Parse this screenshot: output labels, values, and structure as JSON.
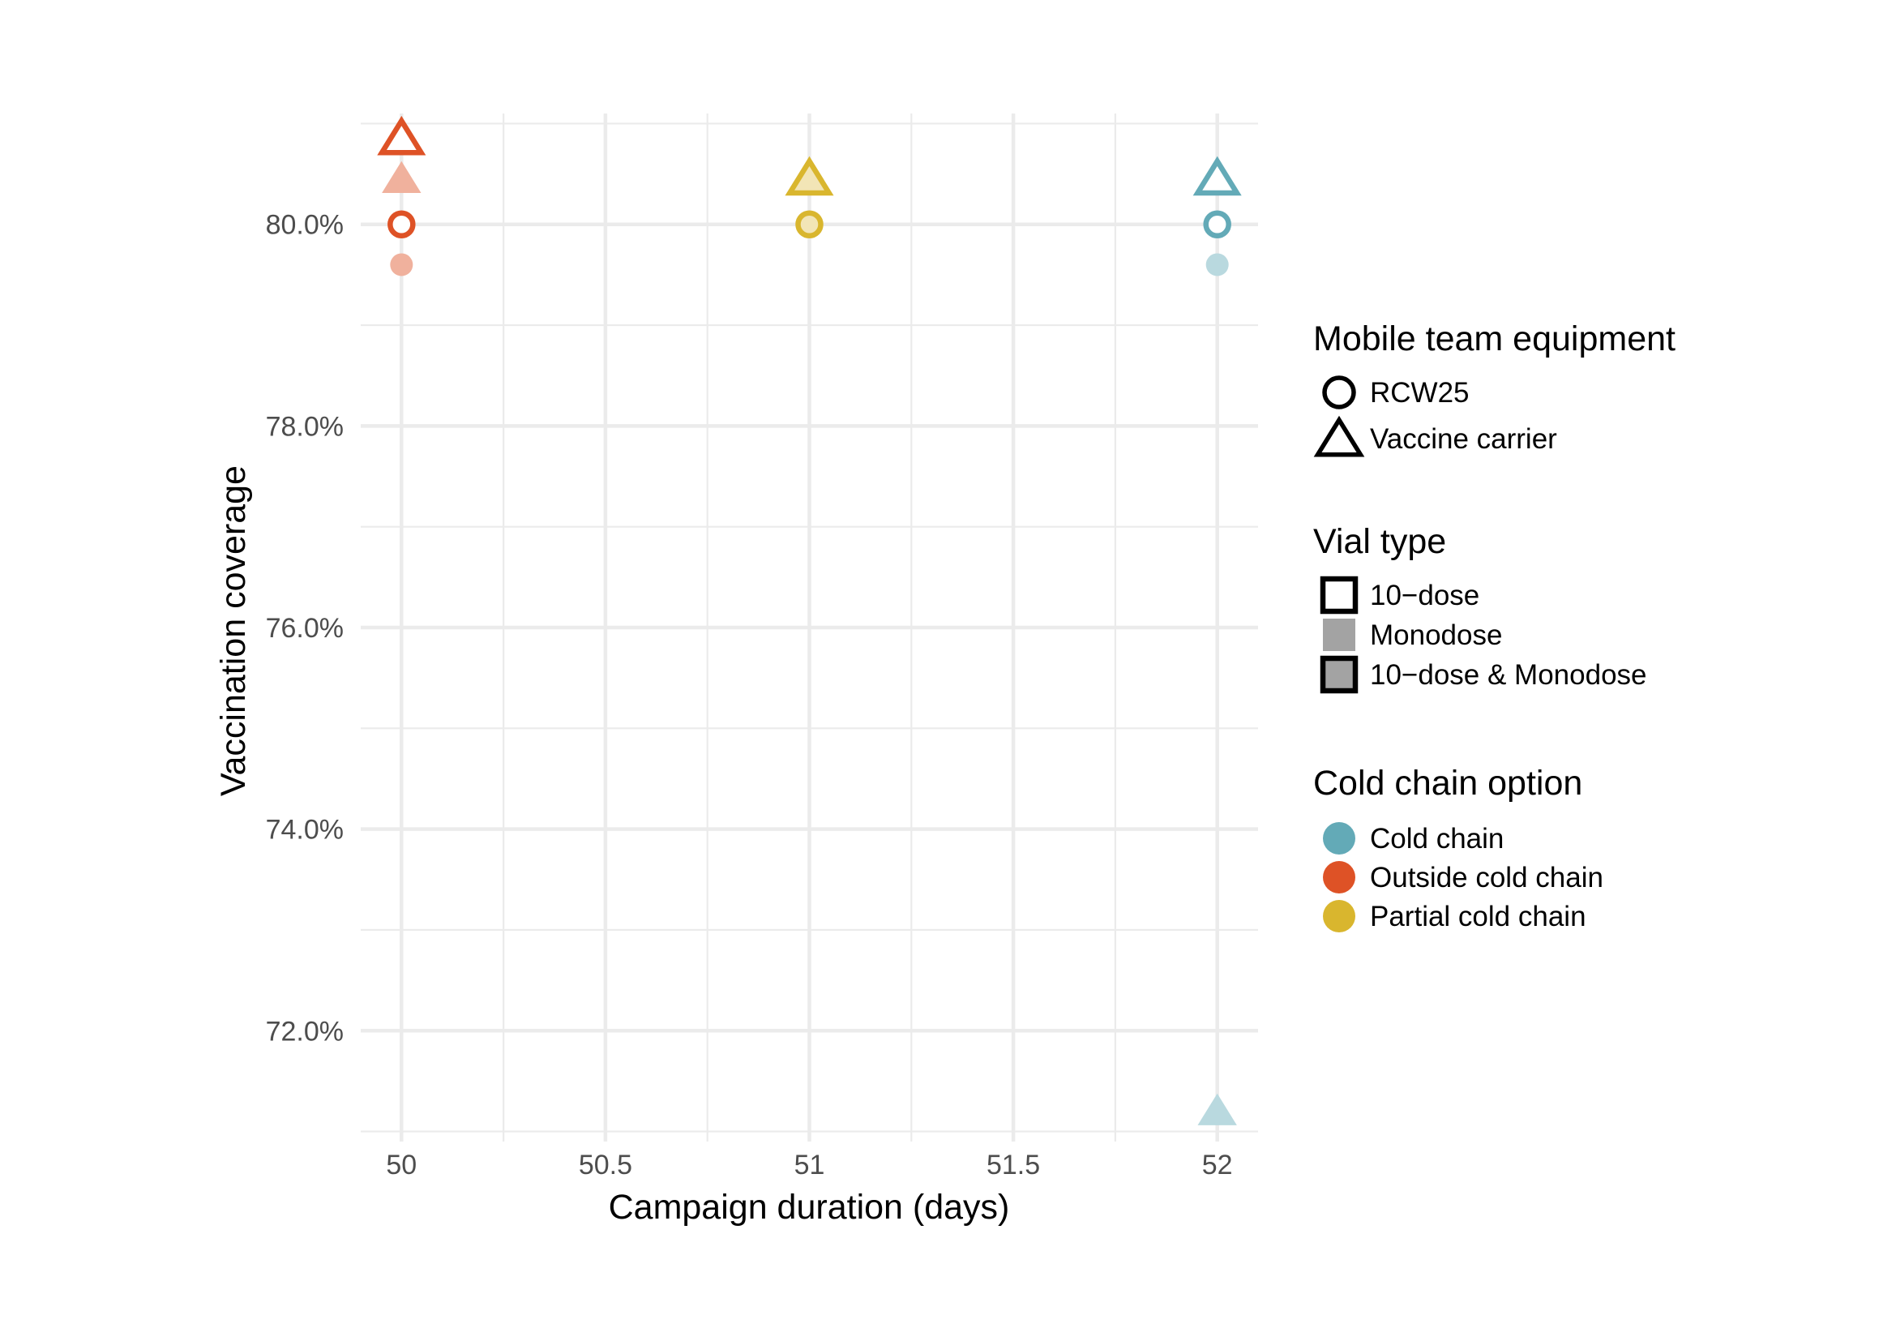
{
  "chart_data": {
    "type": "scatter",
    "xlabel": "Campaign duration (days)",
    "ylabel": "Vaccination coverage",
    "xlim": [
      49.9,
      52.1
    ],
    "ylim": [
      70.9,
      81.1
    ],
    "x_ticks": [
      {
        "value": 50,
        "label": "50"
      },
      {
        "value": 50.5,
        "label": "50.5"
      },
      {
        "value": 51,
        "label": "51"
      },
      {
        "value": 51.5,
        "label": "51.5"
      },
      {
        "value": 52,
        "label": "52"
      }
    ],
    "y_ticks": [
      {
        "value": 72,
        "label": "72.0%"
      },
      {
        "value": 74,
        "label": "74.0%"
      },
      {
        "value": 76,
        "label": "76.0%"
      },
      {
        "value": 78,
        "label": "78.0%"
      },
      {
        "value": 80,
        "label": "80.0%"
      }
    ],
    "grid": true,
    "points": [
      {
        "x": 50,
        "y": 80.85,
        "equipment": "Vaccine carrier",
        "vial": "10-dose",
        "cold_chain": "Outside cold chain"
      },
      {
        "x": 50,
        "y": 80.45,
        "equipment": "Vaccine carrier",
        "vial": "Monodose",
        "cold_chain": "Outside cold chain"
      },
      {
        "x": 50,
        "y": 80.0,
        "equipment": "RCW25",
        "vial": "10-dose",
        "cold_chain": "Outside cold chain"
      },
      {
        "x": 50,
        "y": 79.6,
        "equipment": "RCW25",
        "vial": "Monodose",
        "cold_chain": "Outside cold chain"
      },
      {
        "x": 51,
        "y": 80.45,
        "equipment": "Vaccine carrier",
        "vial": "10-dose & Monodose",
        "cold_chain": "Partial cold chain"
      },
      {
        "x": 51,
        "y": 80.0,
        "equipment": "RCW25",
        "vial": "10-dose & Monodose",
        "cold_chain": "Partial cold chain"
      },
      {
        "x": 52,
        "y": 80.45,
        "equipment": "Vaccine carrier",
        "vial": "10-dose",
        "cold_chain": "Cold chain"
      },
      {
        "x": 52,
        "y": 80.0,
        "equipment": "RCW25",
        "vial": "10-dose",
        "cold_chain": "Cold chain"
      },
      {
        "x": 52,
        "y": 79.6,
        "equipment": "RCW25",
        "vial": "Monodose",
        "cold_chain": "Cold chain"
      },
      {
        "x": 52,
        "y": 71.2,
        "equipment": "Vaccine carrier",
        "vial": "Monodose",
        "cold_chain": "Cold chain"
      }
    ],
    "legends": [
      {
        "title": "Mobile team equipment",
        "items": [
          {
            "label": "RCW25",
            "symbol": "circle-open"
          },
          {
            "label": "Vaccine carrier",
            "symbol": "triangle-open"
          }
        ]
      },
      {
        "title": "Vial type",
        "items": [
          {
            "label": "10−dose",
            "symbol": "square-open"
          },
          {
            "label": "Monodose",
            "symbol": "square-filled-grey"
          },
          {
            "label": "10−dose & Monodose",
            "symbol": "square-grey-outlined"
          }
        ]
      },
      {
        "title": "Cold chain option",
        "items": [
          {
            "label": "Cold chain",
            "symbol": "dot",
            "color": "#63aab7"
          },
          {
            "label": "Outside cold chain",
            "symbol": "dot",
            "color": "#de5226"
          },
          {
            "label": "Partial cold chain",
            "symbol": "dot",
            "color": "#d9b62e"
          }
        ]
      }
    ],
    "colors": {
      "Cold chain": "#63aab7",
      "Outside cold chain": "#de5226",
      "Partial cold chain": "#d9b62e"
    }
  }
}
